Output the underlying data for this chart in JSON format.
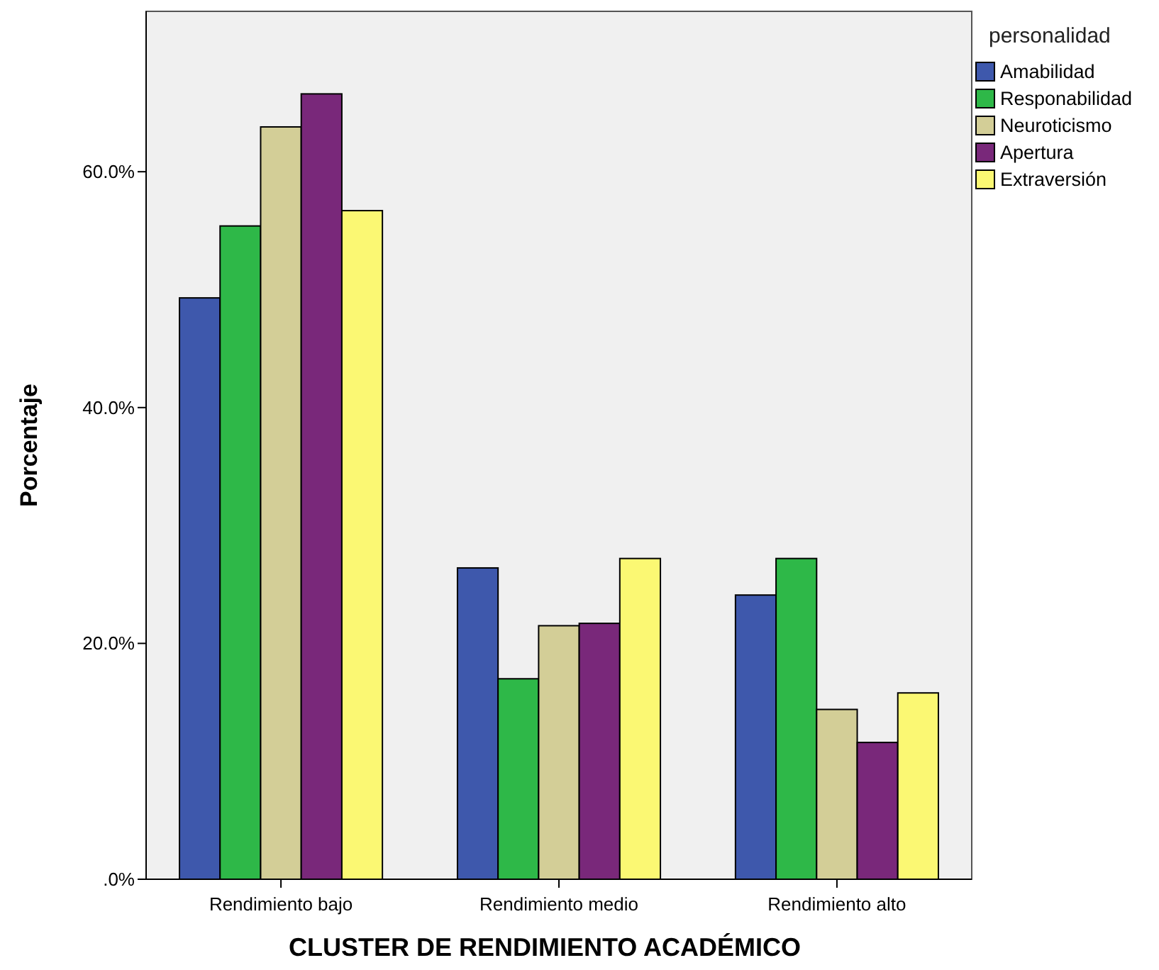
{
  "chart_data": {
    "type": "bar",
    "xlabel": "CLUSTER DE RENDIMIENTO ACADÉMICO",
    "ylabel": "Porcentaje",
    "legend_title": "personalidad",
    "categories": [
      "Rendimiento bajo",
      "Rendimiento medio",
      "Rendimiento alto"
    ],
    "series": [
      {
        "name": "Amabilidad",
        "color": "#3e58ac",
        "values": [
          49.3,
          26.4,
          24.1
        ]
      },
      {
        "name": "Responabilidad",
        "color": "#2eb848",
        "values": [
          55.4,
          17.0,
          27.2
        ]
      },
      {
        "name": "Neuroticismo",
        "color": "#d3ce97",
        "values": [
          63.8,
          21.5,
          14.4
        ]
      },
      {
        "name": "Apertura",
        "color": "#79287a",
        "values": [
          66.6,
          21.7,
          11.6
        ]
      },
      {
        "name": "Extraversión",
        "color": "#fbf873",
        "values": [
          56.7,
          27.2,
          15.8
        ]
      }
    ],
    "ylim": [
      0,
      73.6
    ],
    "yticks": [
      {
        "value": 0,
        "label": ".0%"
      },
      {
        "value": 20,
        "label": "20.0%"
      },
      {
        "value": 40,
        "label": "40.0%"
      },
      {
        "value": 60,
        "label": "60.0%"
      }
    ],
    "grid": false,
    "legend": "top right"
  }
}
